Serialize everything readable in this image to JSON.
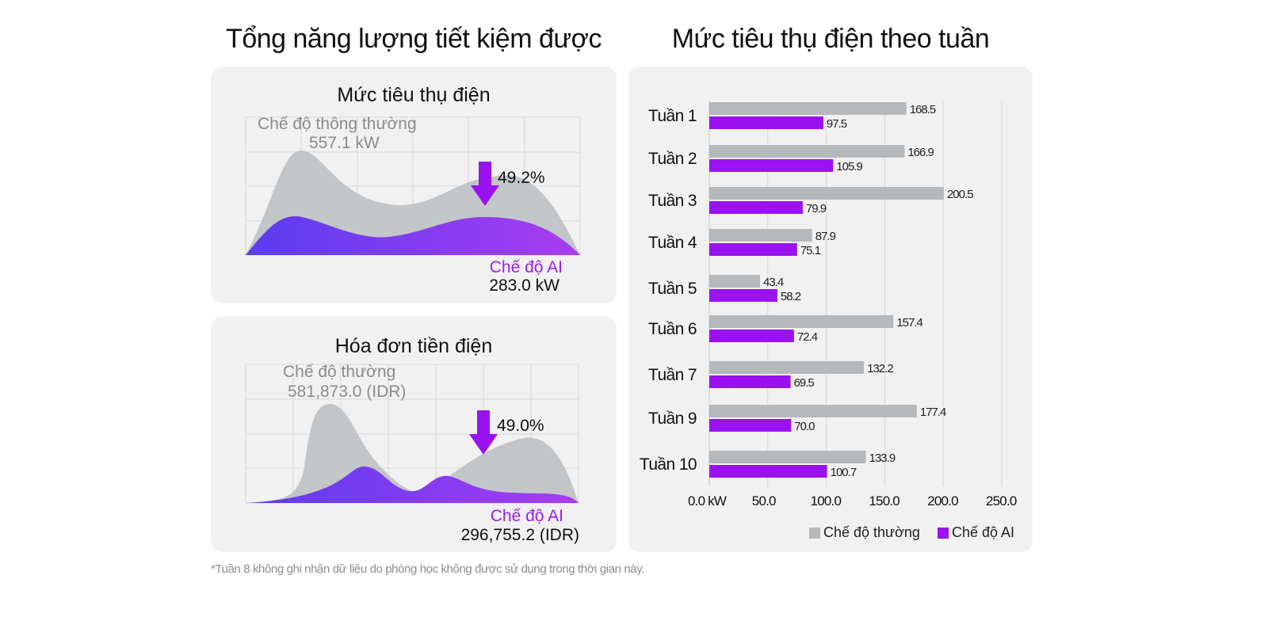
{
  "headings": {
    "left": "Tổng năng lượng tiết kiệm được",
    "right": "Mức tiêu thụ điện theo tuần"
  },
  "energy_panel": {
    "title": "Mức tiêu thụ điện",
    "normal_label": "Chế độ thông thường",
    "normal_value": "557.1 kW",
    "reduction": "49.2%",
    "ai_label": "Chế độ AI",
    "ai_value": "283.0 kW"
  },
  "bill_panel": {
    "title": "Hóa đơn tiền điện",
    "normal_label": "Chế độ thường",
    "normal_value": "581,873.0 (IDR)",
    "reduction": "49.0%",
    "ai_label": "Chế độ AI",
    "ai_value": "296,755.2 (IDR)"
  },
  "icons": {
    "energy_arrow": "arrow-down-icon",
    "bill_arrow": "arrow-down-icon"
  },
  "colors": {
    "normal": "#b5b9bc",
    "ai": "#9b12f2",
    "ai_gradient_start": "#5a3df0",
    "ai_gradient_end": "#a93cf0",
    "ai_text": "#9b1fe8",
    "panel": "#f1f1f1"
  },
  "chart_data": {
    "type": "bar",
    "orientation": "horizontal",
    "categories": [
      "Tuần 1",
      "Tuần 2",
      "Tuần 3",
      "Tuần 4",
      "Tuần 5",
      "Tuần 6",
      "Tuần 7",
      "Tuần 9",
      "Tuần 10"
    ],
    "series": [
      {
        "name": "Chế độ thường",
        "values": [
          168.5,
          166.9,
          200.5,
          87.9,
          43.4,
          157.4,
          132.2,
          177.4,
          133.9
        ],
        "labels": [
          "168.5",
          "166.9",
          "200.5",
          "87.9",
          "43.4",
          "157.4",
          "132.2",
          "177.4",
          "133.9"
        ],
        "color": "#b5b9bc"
      },
      {
        "name": "Chế độ AI",
        "values": [
          97.5,
          105.9,
          79.9,
          75.1,
          58.2,
          72.4,
          69.5,
          70.0,
          100.7
        ],
        "labels": [
          "97.5",
          "105.9",
          "79.9",
          "75.1",
          "58.2",
          "72.4",
          "69.5",
          "70.0",
          "100.7"
        ],
        "color": "#9b12f2"
      }
    ],
    "x_ticks": [
      "0.0 kW",
      "50.0",
      "100.0",
      "150.0",
      "200.0",
      "250.0"
    ],
    "xlim": [
      0,
      250
    ],
    "grid": true,
    "legend_position": "bottom-right"
  },
  "footnote": "*Tuần 8 không ghi nhận dữ liệu do phòng học không được sử dụng trong thời gian này."
}
